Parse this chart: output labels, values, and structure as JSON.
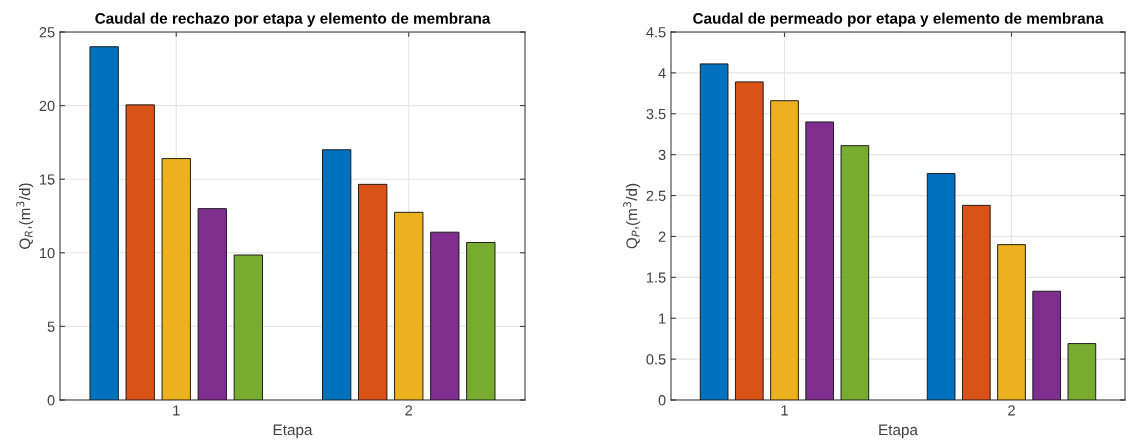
{
  "chart_data": [
    {
      "type": "bar",
      "title": "Caudal de rechazo por etapa y elemento de membrana",
      "xlabel": "Etapa",
      "ylabel": "Q$_{R}$,(m$^{3}$/d)",
      "categories": [
        "1",
        "2"
      ],
      "ylim": [
        0,
        25
      ],
      "yticks": [
        0,
        5,
        10,
        15,
        20,
        25
      ],
      "grid": true,
      "series": [
        {
          "color": "#0072bd",
          "values": [
            24.0,
            17.0
          ]
        },
        {
          "color": "#d95319",
          "values": [
            20.05,
            14.65
          ]
        },
        {
          "color": "#edb120",
          "values": [
            16.4,
            12.75
          ]
        },
        {
          "color": "#7e2f8e",
          "values": [
            13.0,
            11.4
          ]
        },
        {
          "color": "#77ac30",
          "values": [
            9.85,
            10.7
          ]
        }
      ]
    },
    {
      "type": "bar",
      "title": "Caudal de permeado por etapa y elemento de membrana",
      "xlabel": "Etapa",
      "ylabel": "Q$_{P}$,(m$^{3}$/d)",
      "categories": [
        "1",
        "2"
      ],
      "ylim": [
        0,
        4.5
      ],
      "yticks": [
        0,
        0.5,
        1,
        1.5,
        2,
        2.5,
        3,
        3.5,
        4,
        4.5
      ],
      "grid": true,
      "series": [
        {
          "color": "#0072bd",
          "values": [
            4.11,
            2.77
          ]
        },
        {
          "color": "#d95319",
          "values": [
            3.89,
            2.38
          ]
        },
        {
          "color": "#edb120",
          "values": [
            3.66,
            1.9
          ]
        },
        {
          "color": "#7e2f8e",
          "values": [
            3.4,
            1.33
          ]
        },
        {
          "color": "#77ac30",
          "values": [
            3.11,
            0.69
          ]
        }
      ]
    }
  ]
}
